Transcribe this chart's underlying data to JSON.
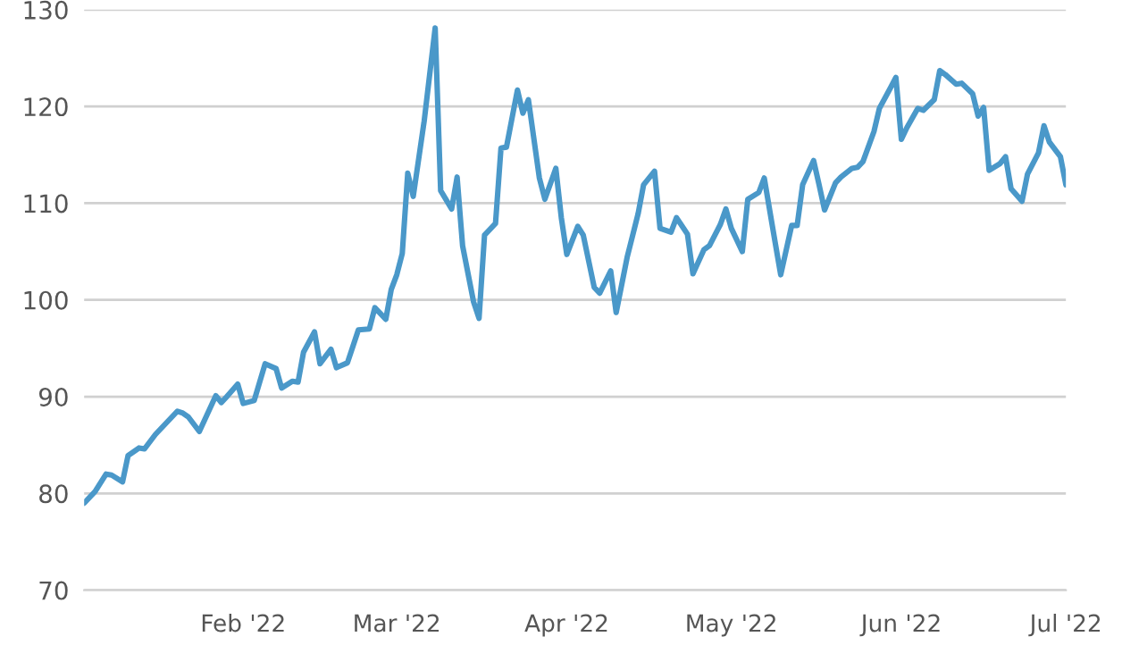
{
  "chart_data": {
    "type": "line",
    "x": [
      "2022-01-03",
      "2022-01-05",
      "2022-01-07",
      "2022-01-08",
      "2022-01-10",
      "2022-01-11",
      "2022-01-13",
      "2022-01-14",
      "2022-01-16",
      "2022-01-17",
      "2022-01-20",
      "2022-01-21",
      "2022-01-22",
      "2022-01-24",
      "2022-01-27",
      "2022-01-28",
      "2022-01-29",
      "2022-01-31",
      "2022-02-01",
      "2022-02-03",
      "2022-02-05",
      "2022-02-07",
      "2022-02-08",
      "2022-02-10",
      "2022-02-11",
      "2022-02-12",
      "2022-02-14",
      "2022-02-15",
      "2022-02-17",
      "2022-02-18",
      "2022-02-20",
      "2022-02-21",
      "2022-02-22",
      "2022-02-24",
      "2022-02-25",
      "2022-02-27",
      "2022-02-28",
      "2022-03-01",
      "2022-03-02",
      "2022-03-03",
      "2022-03-04",
      "2022-03-06",
      "2022-03-08",
      "2022-03-09",
      "2022-03-11",
      "2022-03-12",
      "2022-03-13",
      "2022-03-15",
      "2022-03-16",
      "2022-03-17",
      "2022-03-19",
      "2022-03-20",
      "2022-03-21",
      "2022-03-23",
      "2022-03-24",
      "2022-03-25",
      "2022-03-27",
      "2022-03-28",
      "2022-03-30",
      "2022-03-31",
      "2022-04-01",
      "2022-04-03",
      "2022-04-04",
      "2022-04-06",
      "2022-04-07",
      "2022-04-09",
      "2022-04-10",
      "2022-04-12",
      "2022-04-14",
      "2022-04-15",
      "2022-04-17",
      "2022-04-18",
      "2022-04-20",
      "2022-04-21",
      "2022-04-23",
      "2022-04-24",
      "2022-04-26",
      "2022-04-27",
      "2022-04-29",
      "2022-04-30",
      "2022-05-01",
      "2022-05-03",
      "2022-05-04",
      "2022-05-06",
      "2022-05-07",
      "2022-05-09",
      "2022-05-10",
      "2022-05-12",
      "2022-05-13",
      "2022-05-14",
      "2022-05-16",
      "2022-05-17",
      "2022-05-18",
      "2022-05-20",
      "2022-05-21",
      "2022-05-23",
      "2022-05-24",
      "2022-05-25",
      "2022-05-27",
      "2022-05-28",
      "2022-05-30",
      "2022-05-31",
      "2022-06-01",
      "2022-06-02",
      "2022-06-04",
      "2022-06-05",
      "2022-06-07",
      "2022-06-08",
      "2022-06-09",
      "2022-06-11",
      "2022-06-12",
      "2022-06-14",
      "2022-06-15",
      "2022-06-16",
      "2022-06-17",
      "2022-06-19",
      "2022-06-20",
      "2022-06-21",
      "2022-06-23",
      "2022-06-24",
      "2022-06-26",
      "2022-06-27",
      "2022-06-28",
      "2022-06-30",
      "2022-07-01"
    ],
    "series": [
      {
        "color": "#4a98c9",
        "values": [
          79.0,
          80.2,
          82.0,
          81.9,
          81.2,
          83.9,
          84.7,
          84.6,
          86.1,
          86.7,
          88.5,
          88.3,
          87.9,
          86.4,
          90.1,
          89.4,
          90.0,
          91.3,
          89.3,
          89.6,
          93.4,
          92.9,
          90.9,
          91.6,
          91.5,
          94.6,
          96.7,
          93.4,
          94.9,
          93.0,
          93.5,
          95.2,
          96.9,
          97.0,
          99.2,
          98.0,
          101.1,
          102.6,
          104.8,
          113.1,
          110.7,
          118.5,
          128.1,
          111.3,
          109.4,
          112.7,
          105.6,
          99.8,
          98.1,
          106.7,
          107.9,
          115.7,
          115.8,
          121.7,
          119.3,
          120.7,
          112.6,
          110.4,
          113.6,
          108.5,
          104.7,
          107.6,
          106.7,
          101.3,
          100.7,
          103.0,
          98.7,
          104.4,
          108.9,
          111.9,
          113.3,
          107.4,
          107.0,
          108.5,
          106.8,
          102.7,
          105.2,
          105.6,
          107.8,
          109.4,
          107.4,
          105.0,
          110.4,
          111.1,
          112.6,
          105.9,
          102.6,
          107.7,
          107.7,
          111.9,
          114.4,
          111.9,
          109.3,
          112.1,
          112.7,
          113.6,
          113.7,
          114.3,
          117.4,
          119.8,
          121.9,
          123.0,
          116.6,
          117.8,
          119.8,
          119.6,
          120.7,
          123.7,
          123.3,
          122.3,
          122.4,
          121.3,
          119.0,
          119.9,
          113.4,
          114.1,
          114.8,
          111.5,
          110.2,
          113.0,
          115.2,
          118.0,
          116.3,
          114.8,
          111.9
        ]
      }
    ],
    "xlim": [
      "2022-01-03",
      "2022-07-01"
    ],
    "xticks": [
      {
        "value": "2022-02-01",
        "label": "Feb '22"
      },
      {
        "value": "2022-03-01",
        "label": "Mar '22"
      },
      {
        "value": "2022-04-01",
        "label": "Apr '22"
      },
      {
        "value": "2022-05-01",
        "label": "May '22"
      },
      {
        "value": "2022-06-01",
        "label": "Jun '22"
      },
      {
        "value": "2022-07-01",
        "label": "Jul '22"
      }
    ],
    "ylim": [
      70,
      130
    ],
    "yticks": [
      70,
      80,
      90,
      100,
      110,
      120,
      130
    ],
    "grid": "y",
    "line_style": "solid"
  }
}
